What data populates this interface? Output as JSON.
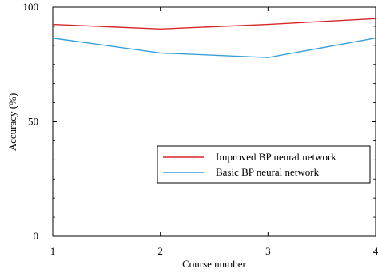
{
  "chart_data": {
    "type": "line",
    "xlabel": "Course number",
    "ylabel": "Accuracy (%)",
    "x": [
      1,
      2,
      3,
      4
    ],
    "x_ticks": [
      "1",
      "2",
      "3",
      "4"
    ],
    "y_ticks": [
      "0",
      "50",
      "100"
    ],
    "xlim": [
      1,
      4
    ],
    "ylim": [
      0,
      100
    ],
    "grid": false,
    "legend_position": "center-right",
    "series": [
      {
        "name": "Improved BP neural network",
        "values": [
          92.5,
          90.5,
          92.5,
          95
        ],
        "color": "#d62728"
      },
      {
        "name": "Basic BP neural network",
        "values": [
          86.5,
          80,
          78,
          86.5
        ],
        "color": "#3a9fd8"
      }
    ]
  }
}
